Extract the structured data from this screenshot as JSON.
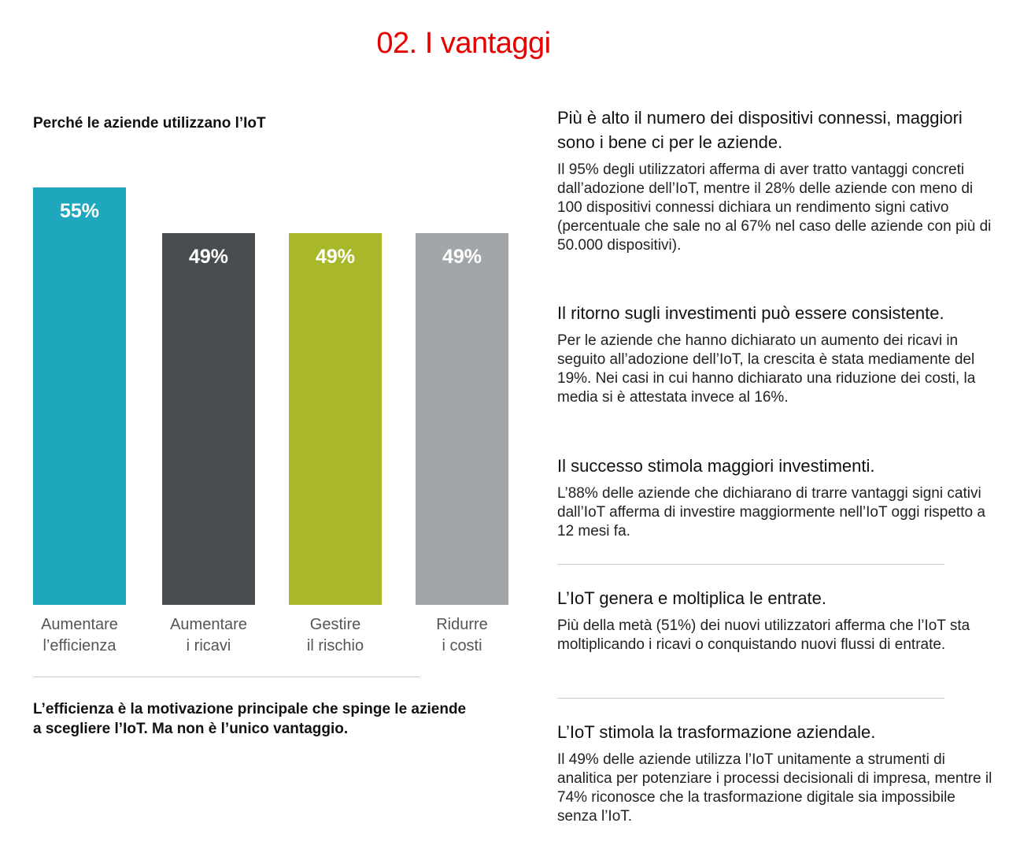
{
  "page_title": "02. I vantaggi",
  "chart_data": {
    "type": "bar",
    "title": "Perché le aziende utilizzano l’IoT",
    "categories": [
      "Aumentare\nl’efficienza",
      "Aumentare\ni ricavi",
      "Gestire\nil rischio",
      "Ridurre\ni costi"
    ],
    "values": [
      55,
      49,
      49,
      49
    ],
    "value_labels": [
      "55%",
      "49%",
      "49%",
      "49%"
    ],
    "colors": [
      "#1fa7be",
      "#4a4d4f",
      "#a9b82a",
      "#a3a6a8"
    ],
    "ylim": [
      0,
      55
    ],
    "grid": false,
    "footnote": "L’efficienza è la motivazione principale che spinge le aziende a scegliere l’IoT. Ma non è l’unico vantaggio."
  },
  "sections": [
    {
      "heading": "Più è alto il numero dei dispositivi connessi, maggiori sono i bene ci per le aziende.",
      "body": "Il 95% degli utilizzatori afferma di aver tratto vantaggi concreti dall’adozione dell’IoT, mentre il 28% delle aziende con meno di 100 dispositivi connessi dichiara un rendimento signi cativo (percentuale che sale no al 67% nel caso delle aziende con più di 50.000 dispositivi)."
    },
    {
      "heading": "Il ritorno sugli investimenti può essere consistente.",
      "body": "Per le aziende che hanno dichiarato un aumento dei ricavi in seguito all’adozione dell’IoT, la crescita è stata mediamente del 19%. Nei casi in cui hanno dichiarato una riduzione dei costi, la media si è attestata invece al 16%."
    },
    {
      "heading": "Il successo stimola maggiori investimenti.",
      "body": "L’88% delle aziende che dichiarano di trarre vantaggi signi cativi dall’IoT afferma di investire maggiormente nell’IoT oggi rispetto a 12 mesi fa."
    },
    {
      "heading": "L’IoT genera e moltiplica le entrate.",
      "body": "Più della metà (51%) dei nuovi utilizzatori afferma che l’IoT sta moltiplicando i ricavi o conquistando nuovi flussi di entrate."
    },
    {
      "heading": "L’IoT stimola la trasformazione aziendale.",
      "body": "Il 49% delle aziende utilizza l’IoT unitamente a strumenti di analitica per potenziare i processi decisionali di impresa, mentre il 74% riconosce che la trasformazione digitale sia impossibile senza l’IoT."
    }
  ]
}
